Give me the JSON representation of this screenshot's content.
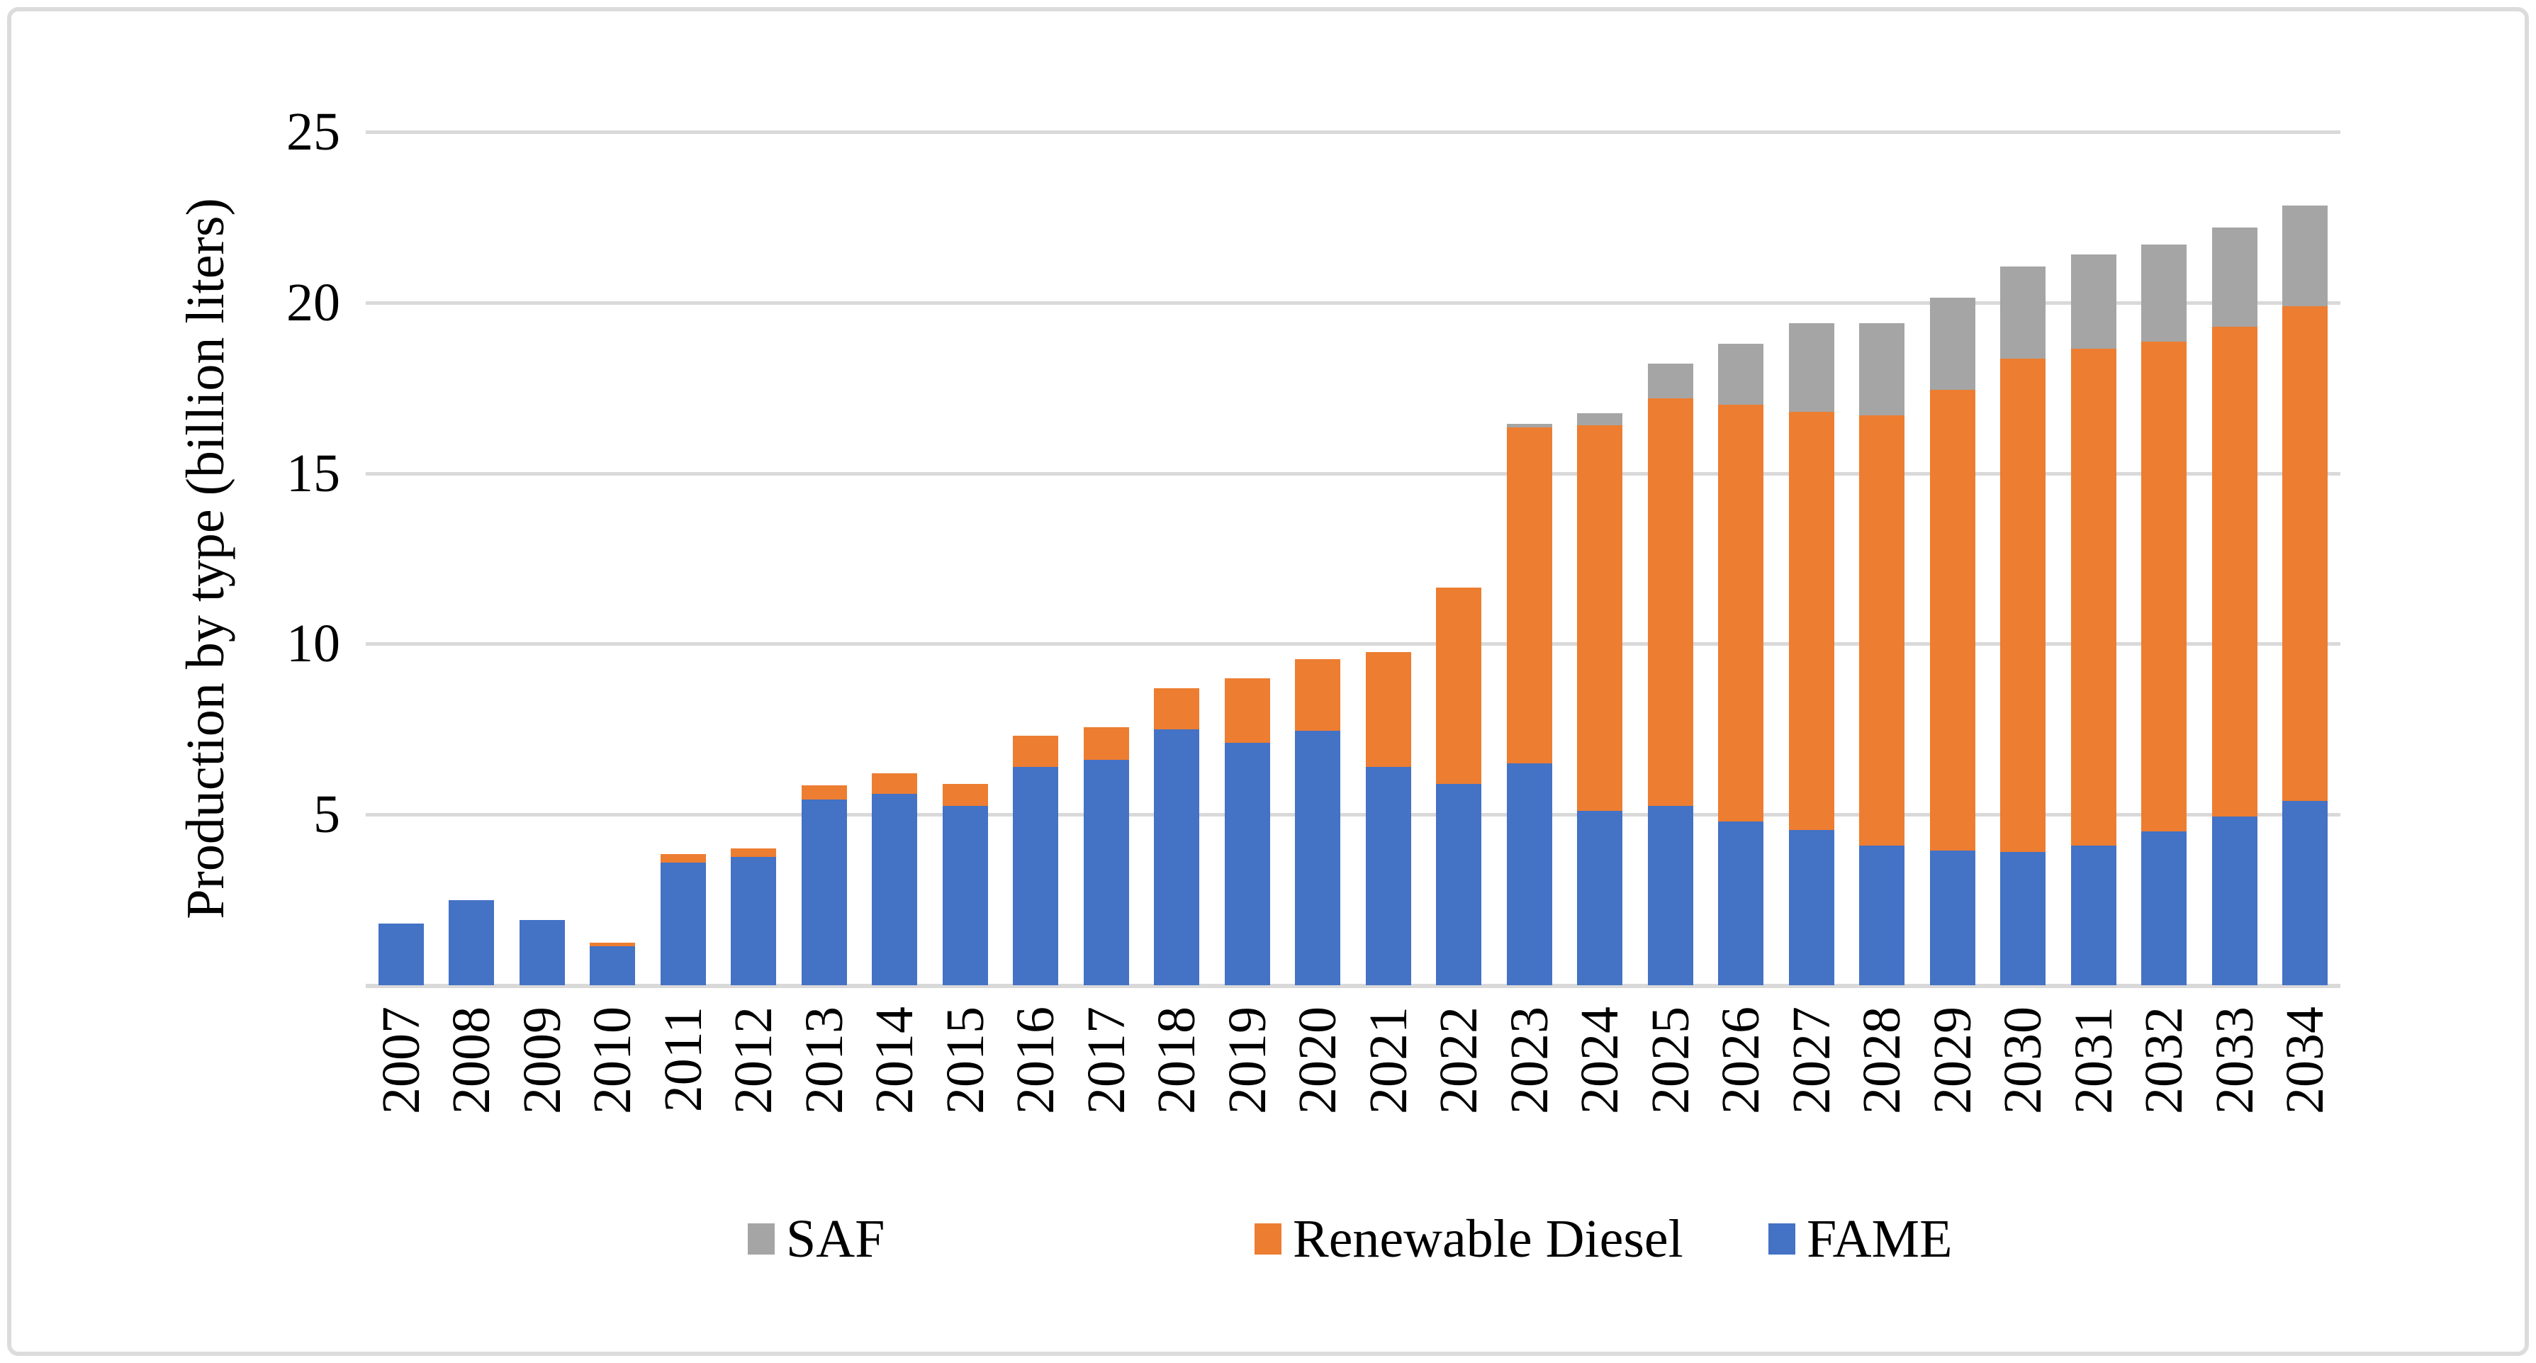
{
  "figure": {
    "background": "#FFFFFF",
    "frame_border_color": "#DCDCDC"
  },
  "chart_data": {
    "type": "bar",
    "stacked": true,
    "title": "",
    "xlabel": "",
    "ylabel": "Production by type (billion liters)",
    "ylim": [
      0,
      25
    ],
    "yticks": [
      5,
      10,
      15,
      20,
      25
    ],
    "grid": "horizontal",
    "gridline_color": "#D9D9D9",
    "axis_line_color": "#D9D9D9",
    "legend_position": "bottom",
    "categories": [
      2007,
      2008,
      2009,
      2010,
      2011,
      2012,
      2013,
      2014,
      2015,
      2016,
      2017,
      2018,
      2019,
      2020,
      2021,
      2022,
      2023,
      2024,
      2025,
      2026,
      2027,
      2028,
      2029,
      2030,
      2031,
      2032,
      2033,
      2034
    ],
    "series": [
      {
        "name": "FAME",
        "color": "#4472C4",
        "values": [
          1.8,
          2.5,
          1.9,
          1.15,
          3.6,
          3.75,
          5.45,
          5.6,
          5.25,
          6.4,
          6.6,
          7.5,
          7.1,
          7.45,
          6.4,
          5.9,
          6.5,
          5.1,
          5.25,
          4.8,
          4.55,
          4.1,
          3.95,
          3.9,
          4.1,
          4.5,
          4.95,
          5.4
        ]
      },
      {
        "name": "Renewable Diesel",
        "color": "#ED7D31",
        "values": [
          0,
          0,
          0,
          0.1,
          0.25,
          0.25,
          0.4,
          0.6,
          0.65,
          0.9,
          0.95,
          1.2,
          1.9,
          2.1,
          3.35,
          5.75,
          9.85,
          11.3,
          11.95,
          12.2,
          12.25,
          12.6,
          13.5,
          14.45,
          14.55,
          14.35,
          14.35,
          14.5
        ]
      },
      {
        "name": "SAF",
        "color": "#A5A5A5",
        "values": [
          0,
          0,
          0,
          0,
          0,
          0,
          0,
          0,
          0,
          0,
          0,
          0,
          0,
          0,
          0,
          0,
          0.1,
          0.35,
          1.0,
          1.8,
          2.6,
          2.7,
          2.7,
          2.7,
          2.75,
          2.85,
          2.9,
          2.95
        ]
      }
    ],
    "legend": [
      {
        "label": "SAF",
        "color": "#A5A5A5"
      },
      {
        "label": "Renewable Diesel",
        "color": "#ED7D31"
      },
      {
        "label": "FAME",
        "color": "#4472C4"
      }
    ]
  }
}
